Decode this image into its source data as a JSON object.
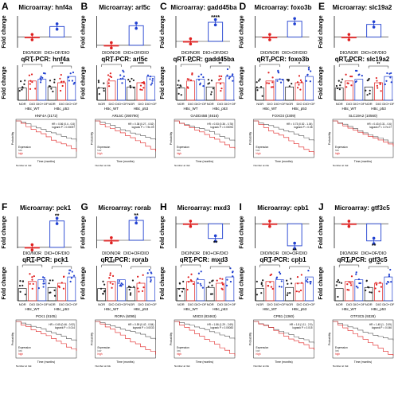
{
  "colors": {
    "ctrl": "#e02020",
    "trt": "#2040d0",
    "axis": "#222222",
    "km_high": "#e02020",
    "km_low": "#555555"
  },
  "x_ctrl": "DIO/NOR",
  "x_trt": "DIO+OF/DIO",
  "fold_label": "Fold change",
  "qpcr_cats": [
    "NOR",
    "DIO",
    "DIO+OF",
    "NOR",
    "DIO",
    "DIO+OF"
  ],
  "qpcr_groups": [
    "HBc_WT",
    "HBc_p53"
  ],
  "km": {
    "ylabel": "Probability",
    "xlabel": "Time (months)",
    "legend_title": "Expression",
    "legend_low": "low",
    "legend_high": "high",
    "at_risk": "Number at risk"
  },
  "chart_data": [
    {
      "panel": "A",
      "gene": "hnf4a",
      "title": "Microarray: hnf4a",
      "qpcr_title": "qRT-PCR: hnf4a",
      "type": "scatter",
      "bars": [
        1.0,
        2.0
      ],
      "ylim": [
        0,
        3
      ],
      "km_title": "HNF4A (3172)",
      "km_stats": "HR = 0.56 (0.4 - 0.8)",
      "km_p": "logrank P = 0.00097",
      "sig": "",
      "qsig": [
        "*",
        "**"
      ]
    },
    {
      "panel": "B",
      "gene": "arl5c",
      "title": "Microarray: arl5c",
      "qpcr_title": "qRT-PCR: arl5c",
      "type": "scatter",
      "bars": [
        1.0,
        9.0
      ],
      "ylim": [
        0,
        13
      ],
      "km_title": "ARL5C (390790)",
      "km_stats": "HR = 0.38 (0.27 - 0.52)",
      "km_p": "logrank P = 7.9e-09",
      "sig": "",
      "qsig": [
        "*",
        "****"
      ]
    },
    {
      "panel": "C",
      "gene": "gadd45ba",
      "title": "Microarray: gadd45ba",
      "qpcr_title": "qRT-PCR: gadd45ba",
      "type": "scatter",
      "bars": [
        1.0,
        4.0
      ],
      "ylim": [
        0,
        5
      ],
      "km_title": "GADD45B (4616)",
      "km_stats": "HR = 0.53 (0.36 - 0.78)",
      "km_p": "logrank P = 0.00094",
      "sig": "****",
      "qsig": [
        "**",
        "**"
      ]
    },
    {
      "panel": "D",
      "gene": "foxo3b",
      "title": "Microarray: foxo3b",
      "qpcr_title": "qRT-PCR: foxo3b",
      "type": "scatter",
      "bars": [
        1.0,
        2.5
      ],
      "ylim": [
        0,
        3
      ],
      "km_title": "FOXO3 (2309)",
      "km_stats": "HR = 0.73 (0.52 - 1.04)",
      "km_p": "logrank P = 0.08",
      "sig": "",
      "qsig": [
        "*",
        "*"
      ]
    },
    {
      "panel": "E",
      "gene": "slc19a2",
      "title": "Microarray: slc19a2",
      "qpcr_title": "qRT-PCR: slc19a2",
      "type": "scatter",
      "bars": [
        1.0,
        2.2
      ],
      "ylim": [
        0,
        3
      ],
      "km_title": "SLC19A2 (10560)",
      "km_stats": "HR = 0.43 (0.31 - 0.6)",
      "km_p": "logrank P = 3.7e-07",
      "sig": "",
      "qsig": [
        "****",
        "**"
      ]
    },
    {
      "panel": "F",
      "gene": "pck1",
      "title": "Microarray: pck1",
      "qpcr_title": "qRT-PCR: pck1",
      "type": "scatter",
      "bars": [
        1.0,
        30.0
      ],
      "ylim": [
        0,
        35
      ],
      "km_title": "PCK1 (5105)",
      "km_stats": "HR = 0.65 (0.46 - 0.92)",
      "km_p": "logrank P = 0.014",
      "sig": "**",
      "qsig": [
        "***",
        "*"
      ]
    },
    {
      "panel": "G",
      "gene": "rorab",
      "title": "Microarray: rorab",
      "qpcr_title": "qRT-PCR: rorab",
      "type": "scatter",
      "bars": [
        1.0,
        3.5
      ],
      "ylim": [
        0,
        4
      ],
      "km_title": "RORA (6095)",
      "km_stats": "HR = 0.59 (0.42 - 0.84)",
      "km_p": "logrank P = 0.0033",
      "sig": "**",
      "qsig": [
        "****",
        "*"
      ]
    },
    {
      "panel": "H",
      "gene": "mxd3",
      "title": "Microarray: mxd3",
      "qpcr_title": "qRT-PCR: mxd3",
      "type": "scatter",
      "bars": [
        1.0,
        0.4
      ],
      "ylim": [
        0,
        1.3
      ],
      "km_title": "MXD3 (83463)",
      "km_stats": "HR = 1.86 (1.29 - 2.69)",
      "km_p": "logrank P = 0.00083",
      "sig": "**",
      "qsig": [
        "**",
        "**"
      ]
    },
    {
      "panel": "I",
      "gene": "cpb1",
      "title": "Microarray: cpb1",
      "qpcr_title": "qRT-PCR: cpb1",
      "type": "scatter",
      "bars": [
        1.0,
        0.1
      ],
      "ylim": [
        0,
        1.3
      ],
      "km_title": "CPB1 (1360)",
      "km_stats": "HR = 1.8 (1.11 - 2.9)",
      "km_p": "logrank P = 0.015",
      "sig": "**",
      "qsig": [
        "**",
        "*"
      ]
    },
    {
      "panel": "J",
      "gene": "gtf3c5",
      "title": "Microarray: gtf3c5",
      "qpcr_title": "qRT-PCR: gtf3c5",
      "type": "scatter",
      "bars": [
        1.0,
        0.3
      ],
      "ylim": [
        0,
        1.3
      ],
      "km_title": "GTF3C5 (9328)",
      "km_stats": "HR = 1.45 (1 - 2.09)",
      "km_p": "logrank P = 0.046",
      "sig": "**",
      "qsig": [
        "****",
        "***"
      ]
    }
  ]
}
